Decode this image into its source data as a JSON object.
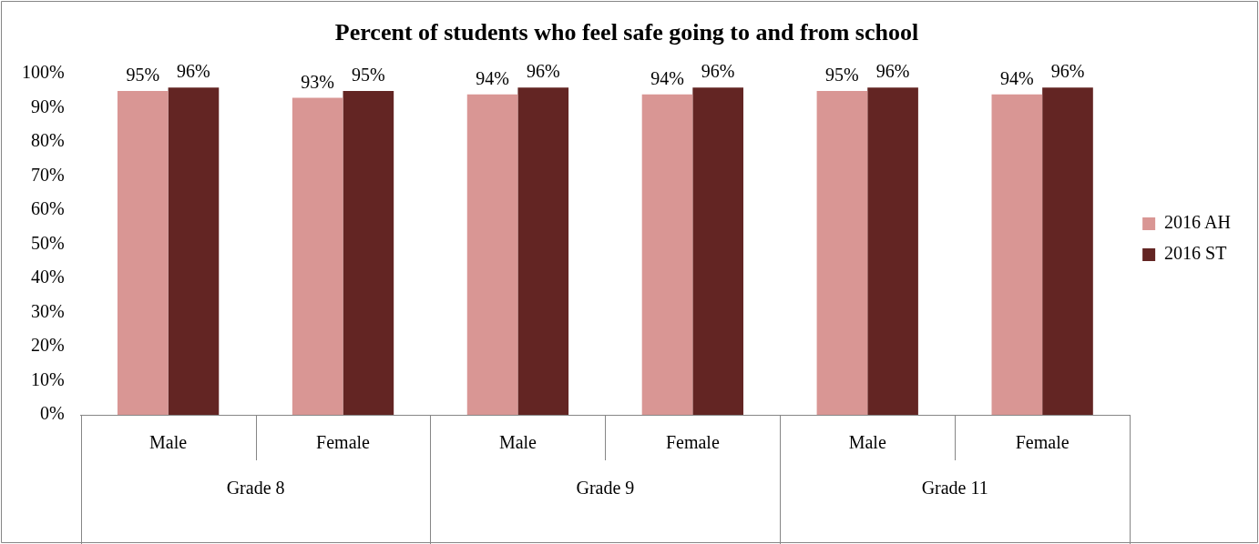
{
  "chart_data": {
    "type": "bar",
    "title": "Percent of students who feel safe going to and from school",
    "categories": [
      "Male",
      "Female",
      "Male",
      "Female",
      "Male",
      "Female"
    ],
    "series": [
      {
        "name": "2016 AH",
        "color": "#d99694",
        "values": [
          95,
          93,
          94,
          94,
          95,
          94
        ],
        "value_labels": [
          "95%",
          "93%",
          "94%",
          "94%",
          "95%",
          "94%"
        ]
      },
      {
        "name": "2016 ST",
        "color": "#632523",
        "values": [
          96,
          95,
          96,
          96,
          96,
          96
        ],
        "value_labels": [
          "96%",
          "95%",
          "96%",
          "96%",
          "96%",
          "96%"
        ]
      }
    ],
    "ylim": [
      0,
      100
    ],
    "yticks": [
      {
        "value": 0,
        "label": "0%"
      },
      {
        "value": 10,
        "label": "10%"
      },
      {
        "value": 20,
        "label": "20%"
      },
      {
        "value": 30,
        "label": "30%"
      },
      {
        "value": 40,
        "label": "40%"
      },
      {
        "value": 50,
        "label": "50%"
      },
      {
        "value": 60,
        "label": "60%"
      },
      {
        "value": 70,
        "label": "70%"
      },
      {
        "value": 80,
        "label": "80%"
      },
      {
        "value": 90,
        "label": "90%"
      },
      {
        "value": 100,
        "label": "100%"
      }
    ],
    "annotations": [
      "Grade 8",
      "Grade 9",
      "Grade 11"
    ],
    "grid": false,
    "legend": "right"
  }
}
